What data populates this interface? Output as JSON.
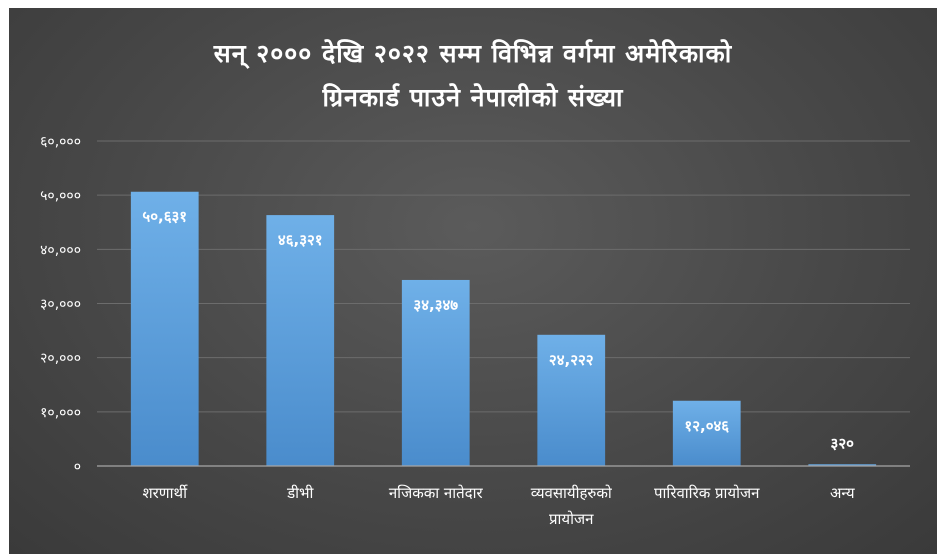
{
  "chart_data": {
    "type": "bar",
    "title_lines": [
      "सन् २००० देखि २०२२ सम्म विभिन्न वर्गमा अमेरिकाको",
      "ग्रिनकार्ड पाउने नेपालीको संख्या"
    ],
    "categories": [
      [
        "शरणार्थी"
      ],
      [
        "डीभी"
      ],
      [
        "नजिकका नातेदार"
      ],
      [
        "व्यवसायीहरुको",
        "प्रायोजन"
      ],
      [
        "पारिवारिक प्रायोजन"
      ],
      [
        "अन्य"
      ]
    ],
    "values": [
      50631,
      46321,
      34347,
      24222,
      12046,
      320
    ],
    "value_labels": [
      "५०,६३१",
      "४६,३२१",
      "३४,३४७",
      "२४,२२२",
      "१२,०४६",
      "३२०"
    ],
    "yticks": [
      0,
      10000,
      20000,
      30000,
      40000,
      50000,
      60000
    ],
    "ytick_labels": [
      "०",
      "१०,०००",
      "२०,०००",
      "३०,०००",
      "४०,०००",
      "५०,०००",
      "६०,०००"
    ],
    "ylim": [
      0,
      60000
    ],
    "grid": true,
    "legend": "none",
    "bar_color": "#5b9bd5",
    "background_color": "#484848"
  }
}
